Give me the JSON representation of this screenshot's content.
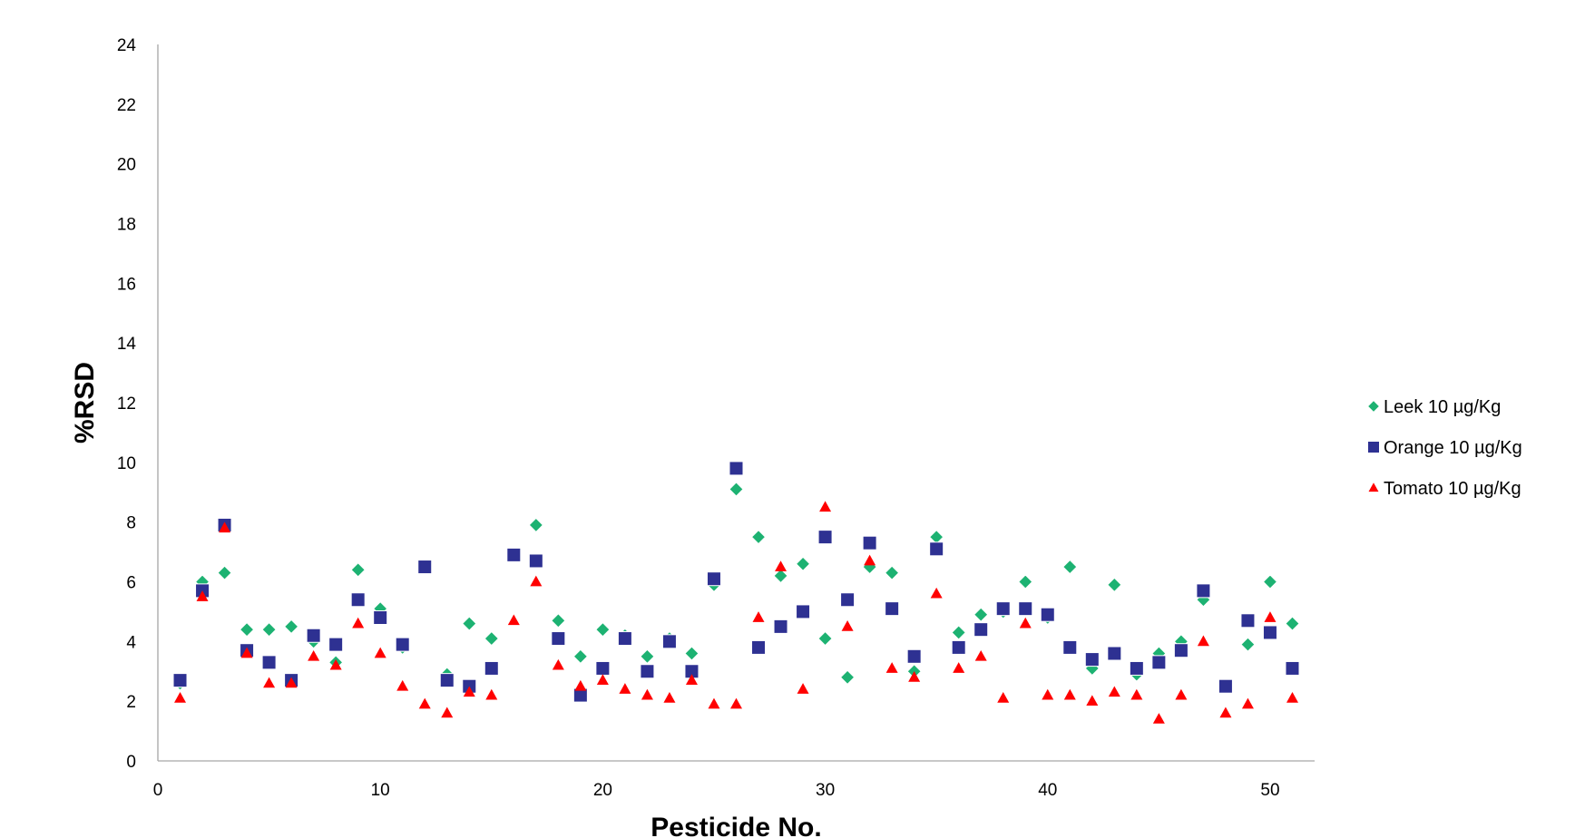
{
  "chart_data": {
    "type": "scatter",
    "xlabel": "Pesticide No.",
    "ylabel": "%RSD",
    "xlim": [
      0,
      52
    ],
    "ylim": [
      0,
      24
    ],
    "x_ticks": [
      0,
      10,
      20,
      30,
      40,
      50
    ],
    "y_ticks": [
      0,
      2,
      4,
      6,
      8,
      10,
      12,
      14,
      16,
      18,
      20,
      22,
      24
    ],
    "grid": false,
    "legend_position": "right",
    "series": [
      {
        "name": "Leek  10 µg/Kg",
        "marker": "diamond",
        "color": "#1DB272",
        "x": [
          1,
          2,
          3,
          4,
          5,
          6,
          7,
          8,
          9,
          10,
          11,
          12,
          13,
          14,
          15,
          16,
          17,
          18,
          19,
          20,
          21,
          22,
          23,
          24,
          25,
          26,
          27,
          28,
          29,
          30,
          31,
          32,
          33,
          34,
          35,
          36,
          37,
          38,
          39,
          40,
          41,
          42,
          43,
          44,
          45,
          46,
          47,
          48,
          49,
          50,
          51
        ],
        "y": [
          2.6,
          6.0,
          6.3,
          4.4,
          4.4,
          4.5,
          4.0,
          3.3,
          6.4,
          5.1,
          3.8,
          6.5,
          2.9,
          4.6,
          4.1,
          6.9,
          7.9,
          4.7,
          3.5,
          4.4,
          4.2,
          3.5,
          4.1,
          3.6,
          5.9,
          9.1,
          7.5,
          6.2,
          6.6,
          4.1,
          2.8,
          6.5,
          6.3,
          3.0,
          7.5,
          4.3,
          4.9,
          5.0,
          6.0,
          4.8,
          6.5,
          3.1,
          5.9,
          2.9,
          3.6,
          4.0,
          5.4,
          2.5,
          3.9,
          6.0,
          4.6
        ]
      },
      {
        "name": "Orange  10 µg/Kg",
        "marker": "square",
        "color": "#2E3192",
        "x": [
          1,
          2,
          3,
          4,
          5,
          6,
          7,
          8,
          9,
          10,
          11,
          12,
          13,
          14,
          15,
          16,
          17,
          18,
          19,
          20,
          21,
          22,
          23,
          24,
          25,
          26,
          27,
          28,
          29,
          30,
          31,
          32,
          33,
          34,
          35,
          36,
          37,
          38,
          39,
          40,
          41,
          42,
          43,
          44,
          45,
          46,
          47,
          48,
          49,
          50,
          51
        ],
        "y": [
          2.7,
          5.7,
          7.9,
          3.7,
          3.3,
          2.7,
          4.2,
          3.9,
          5.4,
          4.8,
          3.9,
          6.5,
          2.7,
          2.5,
          3.1,
          6.9,
          6.7,
          4.1,
          2.2,
          3.1,
          4.1,
          3.0,
          4.0,
          3.0,
          6.1,
          9.8,
          3.8,
          4.5,
          5.0,
          7.5,
          5.4,
          7.3,
          5.1,
          3.5,
          7.1,
          3.8,
          4.4,
          5.1,
          5.1,
          4.9,
          3.8,
          3.4,
          3.6,
          3.1,
          3.3,
          3.7,
          5.7,
          2.5,
          4.7,
          4.3,
          3.1
        ]
      },
      {
        "name": "Tomato  10 µg/Kg",
        "marker": "triangle",
        "color": "#FF0000",
        "x": [
          1,
          2,
          3,
          4,
          5,
          6,
          7,
          8,
          9,
          10,
          11,
          12,
          13,
          14,
          15,
          16,
          17,
          18,
          19,
          20,
          21,
          22,
          23,
          24,
          25,
          26,
          27,
          28,
          29,
          30,
          31,
          32,
          33,
          34,
          35,
          36,
          37,
          38,
          39,
          40,
          41,
          42,
          43,
          44,
          45,
          46,
          47,
          48,
          49,
          50,
          51
        ],
        "y": [
          2.1,
          5.5,
          7.8,
          3.6,
          2.6,
          2.6,
          3.5,
          3.2,
          4.6,
          3.6,
          2.5,
          1.9,
          1.6,
          2.3,
          2.2,
          4.7,
          6.0,
          3.2,
          2.5,
          2.7,
          2.4,
          2.2,
          2.1,
          2.7,
          1.9,
          1.9,
          4.8,
          6.5,
          2.4,
          8.5,
          4.5,
          6.7,
          3.1,
          2.8,
          5.6,
          3.1,
          3.5,
          2.1,
          4.6,
          2.2,
          2.2,
          2.0,
          2.3,
          2.2,
          1.4,
          2.2,
          4.0,
          1.6,
          1.9,
          4.8,
          2.1
        ]
      }
    ]
  }
}
